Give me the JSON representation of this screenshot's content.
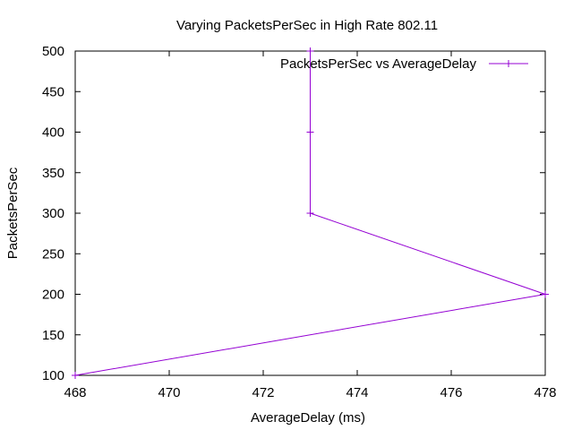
{
  "chart_data": {
    "type": "line",
    "title": "Varying PacketsPerSec in High Rate 802.11",
    "xlabel": "AverageDelay (ms)",
    "ylabel": "PacketsPerSec",
    "xlim": [
      468,
      478
    ],
    "ylim": [
      100,
      500
    ],
    "xticks": [
      "468",
      "470",
      "472",
      "474",
      "476",
      "478"
    ],
    "yticks": [
      "100",
      "150",
      "200",
      "250",
      "300",
      "350",
      "400",
      "450",
      "500"
    ],
    "grid": false,
    "legend_position": "top-right",
    "series": [
      {
        "name": "PacketsPerSec vs AverageDelay",
        "color": "#9400d3",
        "marker": "plus",
        "points": [
          {
            "x": 468,
            "y": 100
          },
          {
            "x": 478,
            "y": 200
          },
          {
            "x": 473,
            "y": 300
          },
          {
            "x": 473,
            "y": 400
          },
          {
            "x": 473,
            "y": 500
          }
        ]
      }
    ]
  }
}
